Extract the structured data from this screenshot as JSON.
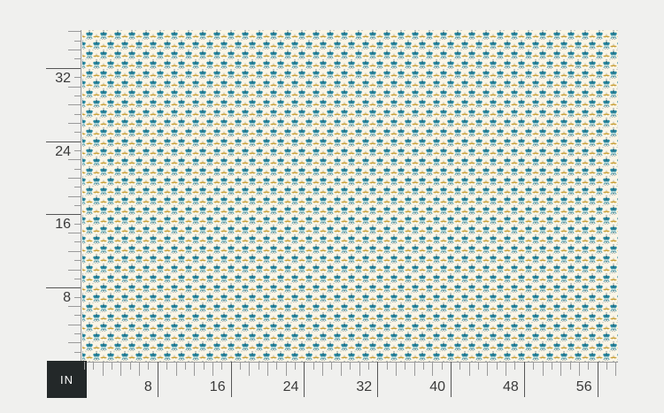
{
  "page": {
    "background": "#F0F0EE"
  },
  "unit_badge": {
    "label": "IN",
    "background": "#232829",
    "text_color": "#FFFFFF"
  },
  "rulers": {
    "unit": "inches",
    "tick_color": "#9A9A9A",
    "major_tick_color": "#565656",
    "label_color": "#3A3A3A",
    "horizontal": {
      "tick_count": 58,
      "major_every": 8,
      "labels": [
        8,
        16,
        24,
        32,
        40,
        48,
        56
      ]
    },
    "vertical": {
      "tick_count": 36,
      "major_every": 8,
      "labels": [
        8,
        16,
        24,
        32
      ]
    }
  },
  "swatch": {
    "motif": "fleur-de-lis repeat with gold cross accents",
    "background": "#FAF5E7",
    "colors": {
      "teal": "#2787A0",
      "teal_dark": "#135F78",
      "light_blue": "#8FCAD3",
      "gold": "#C79E33",
      "navy": "#1D3D52"
    }
  }
}
